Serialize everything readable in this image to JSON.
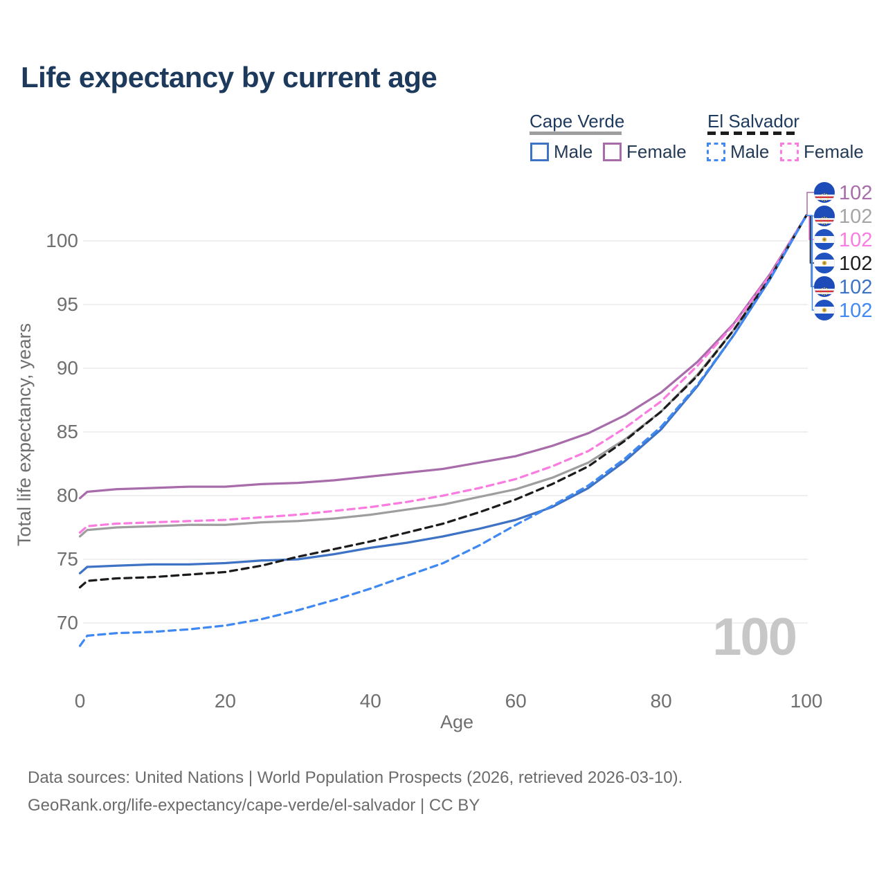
{
  "page": {
    "title": "Life expectancy by current age"
  },
  "legend": {
    "groups": [
      {
        "label": "Cape Verde",
        "line_style": "solid",
        "line_color": "#9e9e9e",
        "items": [
          {
            "label": "Male",
            "color": "#3d72c4",
            "dashed": false
          },
          {
            "label": "Female",
            "color": "#a76ca9",
            "dashed": false
          }
        ]
      },
      {
        "label": "El Salvador",
        "line_style": "dashed",
        "line_color": "#1c1c1c",
        "items": [
          {
            "label": "Male",
            "color": "#4189f2",
            "dashed": true
          },
          {
            "label": "Female",
            "color": "#fb7ce0",
            "dashed": true
          }
        ]
      }
    ]
  },
  "watermark_age": "100",
  "footer": {
    "line1": "Data sources: United Nations | World Population Prospects (2026, retrieved 2026-03-10).",
    "line2": "GeoRank.org/life-expectancy/cape-verde/el-salvador | CC BY"
  },
  "chart_data": {
    "type": "line",
    "title": "Life expectancy by current age",
    "xlabel": "Age",
    "ylabel": "Total life expectancy, years",
    "xlim": [
      0,
      100
    ],
    "ylim": [
      67,
      103
    ],
    "xticks": [
      0,
      20,
      40,
      60,
      80,
      100
    ],
    "yticks": [
      70,
      75,
      80,
      85,
      90,
      95,
      100
    ],
    "grid": true,
    "legend_position": "top-right",
    "ages": [
      0,
      1,
      5,
      10,
      15,
      20,
      25,
      30,
      35,
      40,
      45,
      50,
      55,
      60,
      65,
      70,
      75,
      80,
      85,
      90,
      95,
      100
    ],
    "series": [
      {
        "name": "Cape Verde Female",
        "country": "Cape Verde",
        "sex": "Female",
        "color": "#a76ca9",
        "dashed": false,
        "values": [
          79.8,
          80.3,
          80.5,
          80.6,
          80.7,
          80.7,
          80.9,
          81.0,
          81.2,
          81.5,
          81.8,
          82.1,
          82.6,
          83.1,
          83.9,
          84.9,
          86.3,
          88.1,
          90.5,
          93.5,
          97.4,
          102
        ]
      },
      {
        "name": "Cape Verde Both sexes",
        "country": "Cape Verde",
        "sex": "Both",
        "color": "#9e9e9e",
        "dashed": false,
        "values": [
          76.8,
          77.3,
          77.5,
          77.6,
          77.7,
          77.7,
          77.9,
          78.0,
          78.2,
          78.5,
          78.9,
          79.3,
          79.9,
          80.5,
          81.4,
          82.6,
          84.4,
          86.6,
          89.5,
          93.0,
          97.2,
          102
        ]
      },
      {
        "name": "El Salvador Female",
        "country": "El Salvador",
        "sex": "Female",
        "color": "#fb7ce0",
        "dashed": true,
        "values": [
          77.1,
          77.6,
          77.8,
          77.9,
          78.0,
          78.1,
          78.3,
          78.5,
          78.8,
          79.1,
          79.5,
          80.0,
          80.6,
          81.3,
          82.3,
          83.5,
          85.3,
          87.4,
          90.2,
          93.4,
          97.3,
          102
        ]
      },
      {
        "name": "El Salvador Both sexes",
        "country": "El Salvador",
        "sex": "Both",
        "color": "#1c1c1c",
        "dashed": true,
        "values": [
          72.8,
          73.3,
          73.5,
          73.6,
          73.8,
          74.0,
          74.5,
          75.2,
          75.8,
          76.4,
          77.1,
          77.8,
          78.7,
          79.7,
          80.9,
          82.3,
          84.3,
          86.6,
          89.4,
          93.0,
          97.1,
          102
        ]
      },
      {
        "name": "Cape Verde Male",
        "country": "Cape Verde",
        "sex": "Male",
        "color": "#3d72c4",
        "dashed": false,
        "values": [
          73.9,
          74.4,
          74.5,
          74.6,
          74.6,
          74.7,
          74.9,
          75.0,
          75.4,
          75.9,
          76.3,
          76.8,
          77.4,
          78.1,
          79.1,
          80.6,
          82.7,
          85.2,
          88.6,
          92.6,
          97.0,
          102
        ]
      },
      {
        "name": "El Salvador Male",
        "country": "El Salvador",
        "sex": "Male",
        "color": "#4189f2",
        "dashed": true,
        "values": [
          68.2,
          69.0,
          69.2,
          69.3,
          69.5,
          69.8,
          70.3,
          71.0,
          71.8,
          72.7,
          73.7,
          74.7,
          76.1,
          77.7,
          79.2,
          80.8,
          82.9,
          85.4,
          88.7,
          92.6,
          97.0,
          102
        ]
      }
    ],
    "end_labels": [
      {
        "series": "Cape Verde Female",
        "value": "102",
        "color": "#a76ca9",
        "flag": "cape-verde"
      },
      {
        "series": "Cape Verde Both sexes",
        "value": "102",
        "color": "#a5a5a5",
        "flag": "cape-verde"
      },
      {
        "series": "El Salvador Female",
        "value": "102",
        "color": "#fb7ce0",
        "flag": "el-salvador"
      },
      {
        "series": "El Salvador Both sexes",
        "value": "102",
        "color": "#1c1c1c",
        "flag": "el-salvador"
      },
      {
        "series": "Cape Verde Male",
        "value": "102",
        "color": "#3d72c4",
        "flag": "cape-verde"
      },
      {
        "series": "El Salvador Male",
        "value": "102",
        "color": "#4189f2",
        "flag": "el-salvador"
      }
    ]
  }
}
